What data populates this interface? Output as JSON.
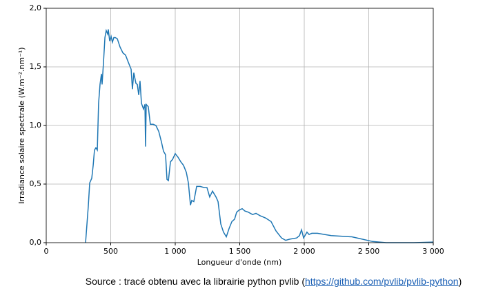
{
  "chart_data": {
    "type": "line",
    "x_label": "Longueur d'onde (nm)",
    "y_label": "Irradiance solaire spectrale (W.m⁻².nm⁻¹)",
    "xlim": [
      0,
      3000
    ],
    "xticks": [
      0,
      500,
      {
        "value": 1000,
        "label": "1 000"
      },
      {
        "value": 1500,
        "label": "1 500"
      },
      {
        "value": 2000,
        "label": "2 000"
      },
      {
        "value": 2500,
        "label": "2 500"
      },
      {
        "value": 3000,
        "label": "3 000"
      }
    ],
    "ylim": [
      0,
      2
    ],
    "yticks": [
      {
        "value": 0,
        "label": "0,0"
      },
      {
        "value": 0.5,
        "label": "0,5"
      },
      {
        "value": 1,
        "label": "1,0"
      },
      {
        "value": 1.5,
        "label": "1,5"
      },
      {
        "value": 2,
        "label": "2,0"
      }
    ],
    "grid": true,
    "series": [
      {
        "color": "#1f77b4",
        "x": [
          305,
          326,
          337,
          353,
          364,
          374,
          385,
          396,
          406,
          417,
          428,
          433,
          444,
          455,
          465,
          476,
          481,
          492,
          503,
          513,
          524,
          535,
          551,
          572,
          594,
          615,
          636,
          658,
          668,
          679,
          695,
          706,
          717,
          727,
          738,
          754,
          765,
          770,
          775,
          791,
          807,
          829,
          850,
          872,
          893,
          909,
          925,
          936,
          947,
          963,
          979,
          1000,
          1021,
          1043,
          1064,
          1086,
          1102,
          1118,
          1128,
          1144,
          1166,
          1193,
          1225,
          1246,
          1267,
          1289,
          1316,
          1332,
          1353,
          1374,
          1396,
          1417,
          1439,
          1460,
          1476,
          1497,
          1519,
          1540,
          1567,
          1599,
          1626,
          1658,
          1701,
          1743,
          1781,
          1824,
          1856,
          1888,
          1941,
          1963,
          1979,
          1995,
          2021,
          2037,
          2059,
          2102,
          2209,
          2369,
          2449,
          2529,
          2636,
          2850,
          3000
        ],
        "values": [
          0,
          0.31,
          0.51,
          0.55,
          0.66,
          0.79,
          0.81,
          0.79,
          1.19,
          1.35,
          1.44,
          1.35,
          1.54,
          1.75,
          1.81,
          1.78,
          1.82,
          1.72,
          1.76,
          1.71,
          1.75,
          1.75,
          1.74,
          1.67,
          1.62,
          1.6,
          1.54,
          1.48,
          1.31,
          1.45,
          1.36,
          1.35,
          1.26,
          1.38,
          1.19,
          1.14,
          1.18,
          0.82,
          1.18,
          1.16,
          1.01,
          1.01,
          1,
          0.95,
          0.86,
          0.78,
          0.75,
          0.54,
          0.53,
          0.69,
          0.71,
          0.76,
          0.73,
          0.69,
          0.66,
          0.6,
          0.51,
          0.32,
          0.36,
          0.35,
          0.48,
          0.48,
          0.47,
          0.47,
          0.39,
          0.44,
          0.39,
          0.35,
          0.16,
          0.09,
          0.05,
          0.12,
          0.18,
          0.2,
          0.26,
          0.28,
          0.29,
          0.27,
          0.26,
          0.24,
          0.25,
          0.23,
          0.21,
          0.18,
          0.1,
          0.04,
          0.02,
          0.03,
          0.04,
          0.06,
          0.11,
          0.04,
          0.09,
          0.07,
          0.08,
          0.08,
          0.06,
          0.05,
          0.03,
          0.01,
          0,
          0,
          0.005
        ]
      }
    ]
  },
  "caption": {
    "text": "Source : tracé obtenu avec la librairie python pvlib (",
    "link": "https://github.com/pvlib/pvlib-python",
    "end": ")"
  }
}
